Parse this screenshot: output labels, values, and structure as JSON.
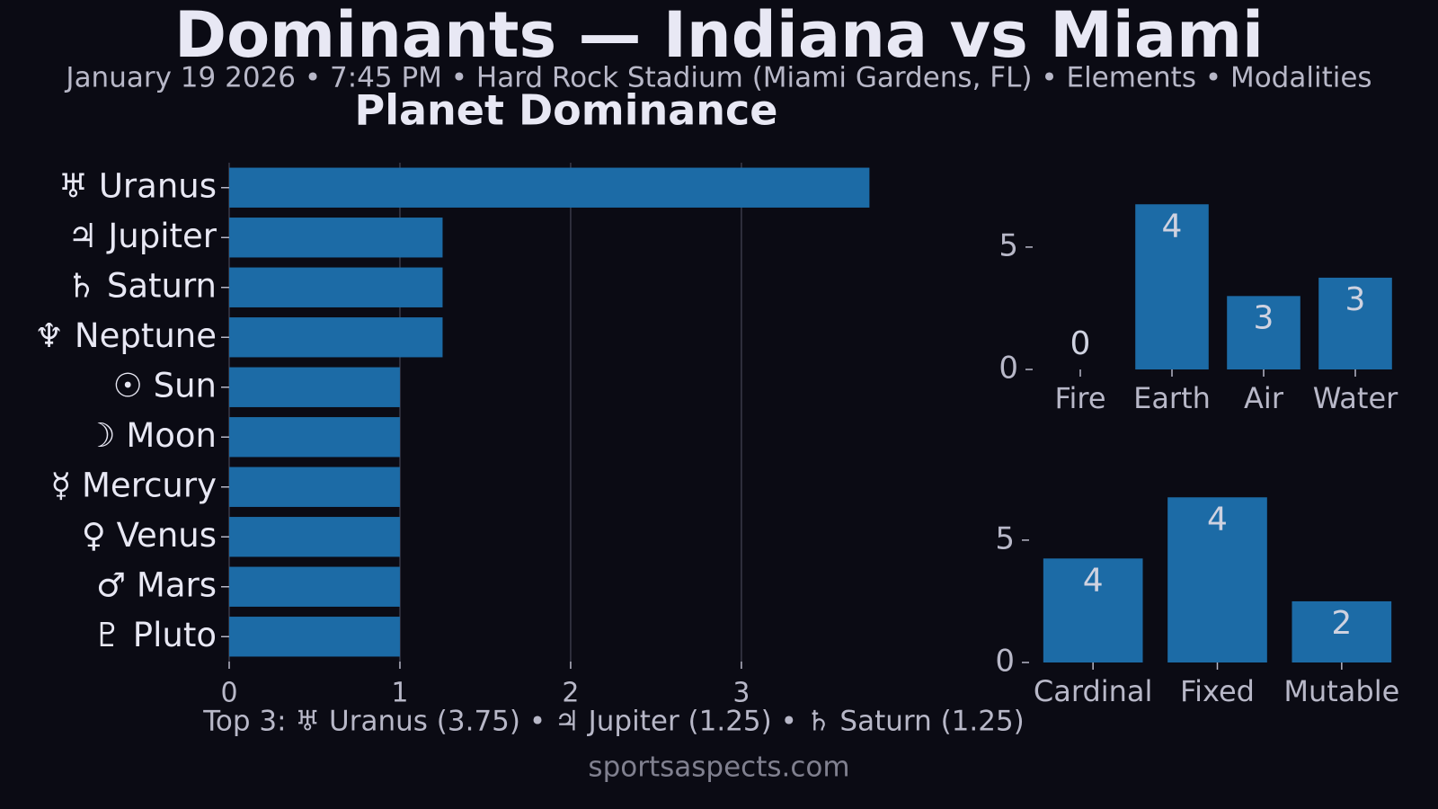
{
  "title": "Dominants — Indiana vs Miami",
  "subtitle": "January 19 2026 • 7:45 PM • Hard Rock Stadium (Miami Gardens, FL) • Elements • Modalities",
  "footnote": "Top 3: ♅ Uranus (3.75) • ♃ Jupiter (1.25) • ♄ Saturn (1.25)",
  "credit": "sportsaspects.com",
  "chart_data": [
    {
      "type": "barh",
      "title": "Planet Dominance",
      "categories": [
        "♅ Uranus",
        "♃ Jupiter",
        "♄ Saturn",
        "♆ Neptune",
        "☉ Sun",
        "☽ Moon",
        "☿ Mercury",
        "♀ Venus",
        "♂ Mars",
        "♇ Pluto"
      ],
      "values": [
        3.75,
        1.25,
        1.25,
        1.25,
        1,
        1,
        1,
        1,
        1,
        1
      ],
      "color": "#1c6ba6",
      "xlim": [
        0,
        3.9375
      ],
      "xticks": [
        0,
        1,
        2,
        3
      ],
      "grid": true
    },
    {
      "type": "bar",
      "categories": [
        "Fire",
        "Earth",
        "Air",
        "Water"
      ],
      "values": [
        0,
        6.75,
        3.0,
        3.75
      ],
      "counts": [
        0,
        4,
        3,
        3
      ],
      "color": "#1c6ba6",
      "ylim": [
        0,
        7.09
      ],
      "yticks": [
        0,
        5
      ]
    },
    {
      "type": "bar",
      "categories": [
        "Cardinal",
        "Fixed",
        "Mutable"
      ],
      "values": [
        4.25,
        6.75,
        2.5
      ],
      "counts": [
        4,
        4,
        2
      ],
      "color": "#1c6ba6",
      "ylim": [
        0,
        7.09
      ],
      "yticks": [
        0,
        5
      ]
    }
  ]
}
